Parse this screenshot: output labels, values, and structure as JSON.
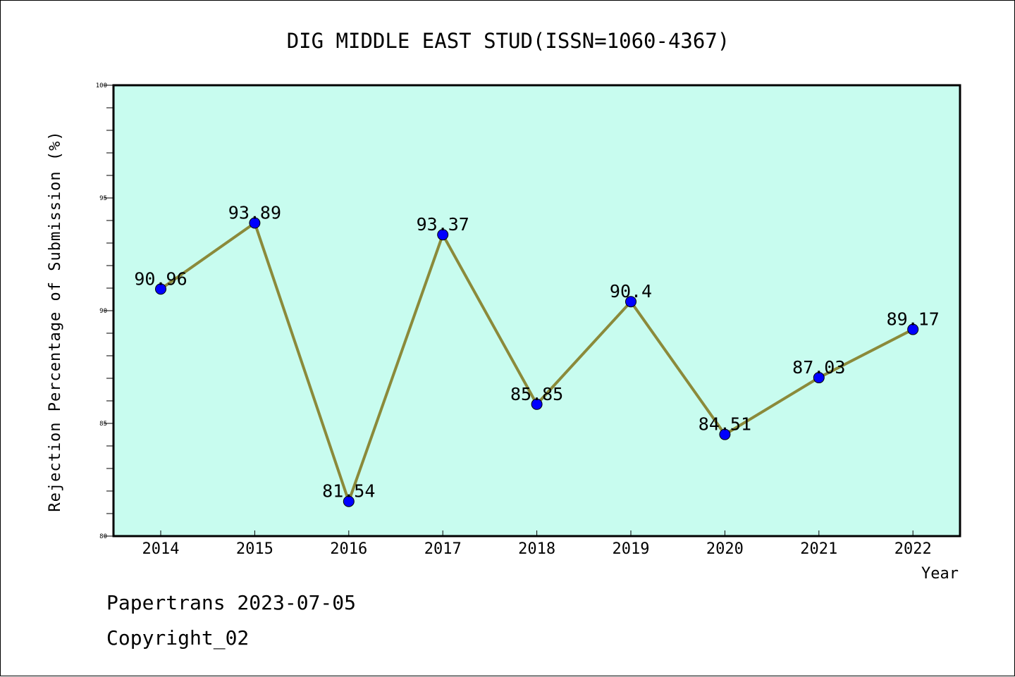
{
  "chart_data": {
    "type": "line",
    "title": "DIG MIDDLE EAST STUD(ISSN=1060-4367)",
    "xlabel": "Year",
    "ylabel": "Rejection Percentage of Submission (%)",
    "x": [
      "2014",
      "2015",
      "2016",
      "2017",
      "2018",
      "2019",
      "2020",
      "2021",
      "2022"
    ],
    "series": [
      {
        "values": [
          90.96,
          93.89,
          81.54,
          93.37,
          85.85,
          90.4,
          84.51,
          87.03,
          89.17
        ],
        "labels": [
          "90.96",
          "93.89",
          "81.54",
          "93.37",
          "85.85",
          "90.4",
          "84.51",
          "87.03",
          "89.17"
        ]
      }
    ],
    "ylim": [
      80,
      100
    ],
    "yticks": [
      "80",
      "85",
      "90",
      "95",
      "100"
    ],
    "grid": false,
    "colors": {
      "plot_background": "#c8fcef",
      "line": "#8b8a3a",
      "marker": "#0000ff"
    }
  },
  "footer": {
    "line1": "Papertrans 2023-07-05",
    "line2": "Copyright_02"
  }
}
